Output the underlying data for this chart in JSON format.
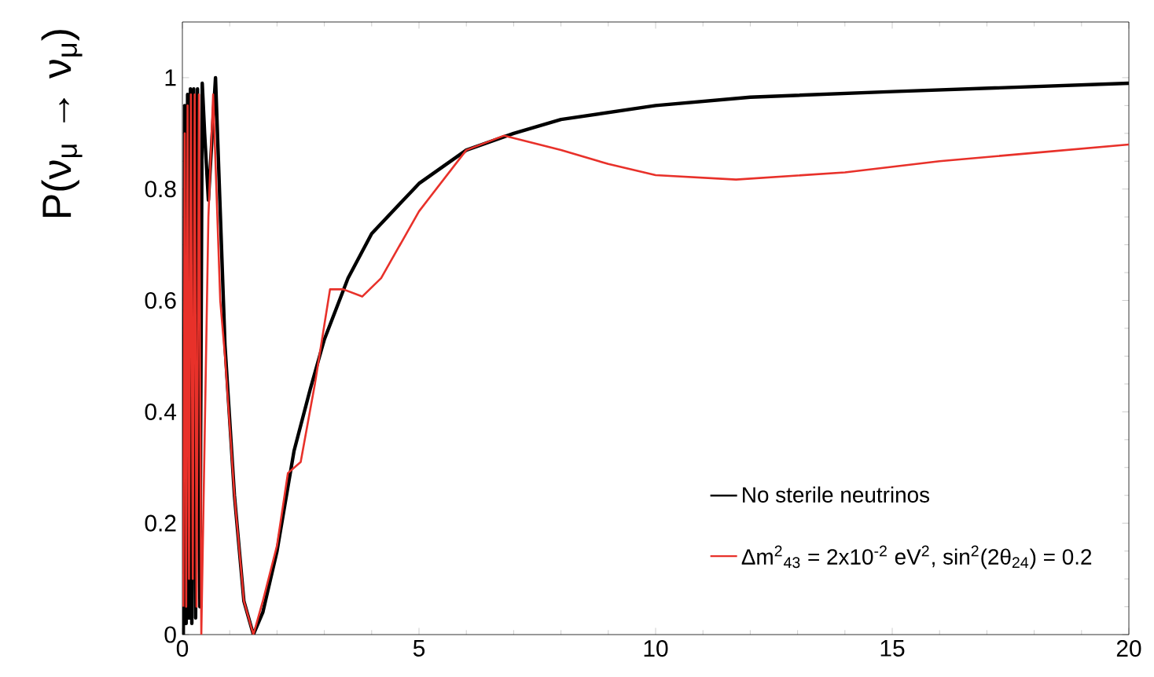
{
  "chart_data": {
    "type": "line",
    "ylabel": "P(ν$_{μ}$ → ν$_{μ}$)",
    "xlim": [
      0,
      20
    ],
    "ylim": [
      0,
      1.1
    ],
    "xticks": [
      0,
      5,
      10,
      15,
      20
    ],
    "yticks": [
      0,
      0.2,
      0.4,
      0.6,
      0.8,
      1
    ],
    "grid": false,
    "legend": "bottom right",
    "marker": "none",
    "line_style": "solid",
    "series": [
      {
        "name": "No sterile neutrinos",
        "color": "#000000",
        "x": [
          0.02,
          0.05,
          0.08,
          0.11,
          0.14,
          0.17,
          0.2,
          0.24,
          0.28,
          0.32,
          0.37,
          0.42,
          0.47,
          0.55,
          0.7,
          0.9,
          1.1,
          1.3,
          1.5,
          1.7,
          2.0,
          2.36,
          2.7,
          3.0,
          3.5,
          4.0,
          5.0,
          6.0,
          7.0,
          8.0,
          10.0,
          12.0,
          15.0,
          20.0
        ],
        "values": [
          0.0,
          0.95,
          0.02,
          0.97,
          0.03,
          0.98,
          0.02,
          0.98,
          0.03,
          0.98,
          0.05,
          0.99,
          0.9,
          0.78,
          1.0,
          0.52,
          0.25,
          0.06,
          0.0,
          0.04,
          0.15,
          0.33,
          0.44,
          0.53,
          0.64,
          0.72,
          0.81,
          0.87,
          0.9,
          0.925,
          0.95,
          0.965,
          0.975,
          0.99
        ]
      },
      {
        "name": "Δm$^{2}$$_{43}$ = 2x10$^{-2}$ eV$^{2}$, sin$^{2}$(2θ$_{24}$) = 0.2",
        "color": "#e8312a",
        "x": [
          0.02,
          0.05,
          0.08,
          0.11,
          0.14,
          0.18,
          0.22,
          0.26,
          0.3,
          0.35,
          0.4,
          0.55,
          0.65,
          0.8,
          0.9,
          1.1,
          1.3,
          1.5,
          1.7,
          2.0,
          2.23,
          2.5,
          2.8,
          3.12,
          3.4,
          3.8,
          4.2,
          5.0,
          6.0,
          6.8,
          8.0,
          9.0,
          10.0,
          11.7,
          14.0,
          16.0,
          18.0,
          20.0
        ],
        "values": [
          0.05,
          0.9,
          0.05,
          0.95,
          0.1,
          0.97,
          0.1,
          0.97,
          0.05,
          0.97,
          0.0,
          0.75,
          0.97,
          0.6,
          0.5,
          0.25,
          0.06,
          0.0,
          0.06,
          0.16,
          0.29,
          0.31,
          0.45,
          0.62,
          0.62,
          0.607,
          0.64,
          0.76,
          0.87,
          0.896,
          0.87,
          0.845,
          0.825,
          0.817,
          0.83,
          0.85,
          0.865,
          0.88
        ]
      }
    ]
  }
}
